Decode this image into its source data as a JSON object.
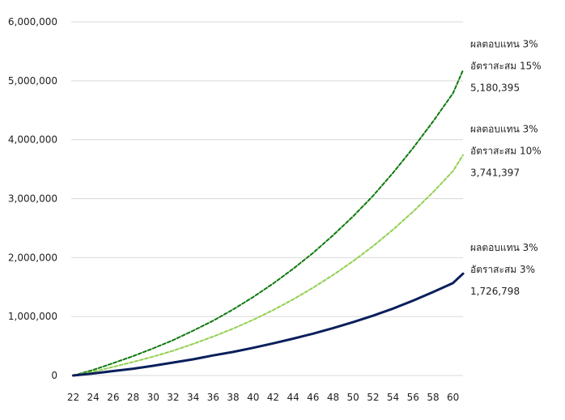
{
  "chart_data": {
    "type": "line",
    "x": [
      22,
      24,
      26,
      28,
      30,
      32,
      34,
      36,
      38,
      40,
      42,
      44,
      46,
      48,
      50,
      52,
      54,
      56,
      58,
      60,
      61
    ],
    "ylim": [
      0,
      6000000
    ],
    "xlim": [
      22,
      61
    ],
    "y_ticks": [
      "0",
      "1,000,000",
      "2,000,000",
      "3,000,000",
      "4,000,000",
      "5,000,000",
      "6,000,000"
    ],
    "x_ticks": [
      "22",
      "24",
      "26",
      "28",
      "30",
      "32",
      "34",
      "36",
      "38",
      "40",
      "42",
      "44",
      "46",
      "48",
      "50",
      "52",
      "54",
      "56",
      "58",
      "60"
    ],
    "grid": "horizontal",
    "series": [
      {
        "color": "#0e7a0d",
        "style": "dashed",
        "values": [
          0,
          95000,
          210000,
          330000,
          460000,
          600000,
          760000,
          930000,
          1120000,
          1330000,
          1560000,
          1810000,
          2080000,
          2380000,
          2700000,
          3050000,
          3440000,
          3860000,
          4310000,
          4790000,
          5180395
        ],
        "annotation": [
          "ผลตอบแทน 3%",
          "อัตราสะสม 15%",
          "5,180,395"
        ]
      },
      {
        "color": "#92d050",
        "style": "dashed",
        "values": [
          0,
          65000,
          145000,
          230000,
          320000,
          420000,
          535000,
          660000,
          795000,
          945000,
          1110000,
          1290000,
          1490000,
          1705000,
          1940000,
          2195000,
          2475000,
          2780000,
          3110000,
          3470000,
          3741397
        ],
        "annotation": [
          "ผลตอบแทน 3%",
          "อัตราสะสม 10%",
          "3,741,397"
        ]
      },
      {
        "color": "#0a1f5c",
        "style": "solid",
        "values": [
          0,
          35000,
          75000,
          115000,
          165000,
          220000,
          275000,
          340000,
          400000,
          470000,
          545000,
          625000,
          710000,
          805000,
          905000,
          1015000,
          1135000,
          1270000,
          1415000,
          1570000,
          1726798
        ],
        "annotation": [
          "ผลตอบแทน 3%",
          "อัตราสะสม 3%",
          "1,726,798"
        ]
      }
    ]
  }
}
